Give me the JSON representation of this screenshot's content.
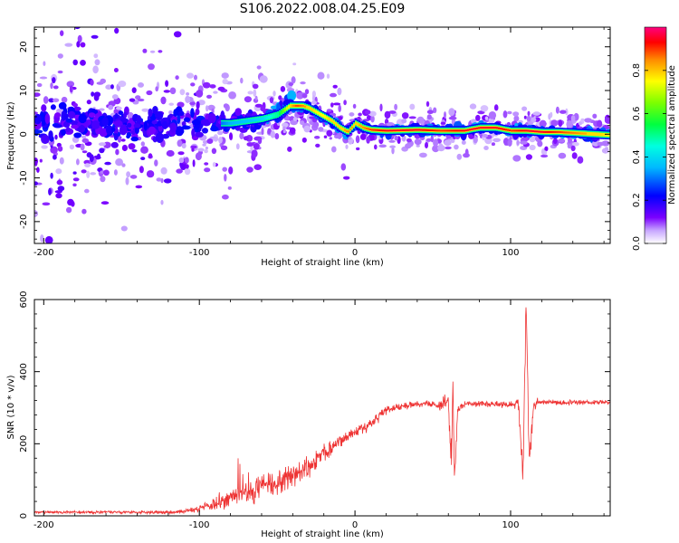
{
  "title": "S106.2022.008.04.25.E09",
  "chart_data": [
    {
      "type": "heatmap",
      "xlabel": "Height of straight line (km)",
      "ylabel": "Frequency (Hz)",
      "xlim": [
        -206,
        164
      ],
      "ylim": [
        -25,
        24.5
      ],
      "xticks": [
        -200,
        -100,
        0,
        100
      ],
      "xtick_labels": [
        "-200",
        "-100",
        "0",
        "100"
      ],
      "yticks": [
        -20,
        -10,
        0,
        10,
        20
      ],
      "ytick_labels": [
        "-20",
        "-10",
        "0",
        "10",
        "20"
      ],
      "colorbar": {
        "label": "Normalized spectral amplitude",
        "range": [
          0,
          1
        ],
        "ticks": [
          0.0,
          0.2,
          0.4,
          0.6,
          0.8
        ],
        "tick_labels": [
          "0.0",
          "0.2",
          "0.4",
          "0.6",
          "0.8"
        ],
        "colormap": "gist_ncar_r"
      },
      "ridge_frequency_track": {
        "x": [
          -206,
          -150,
          -100,
          -80,
          -60,
          -50,
          -42,
          -38,
          -34,
          -30,
          -25,
          -20,
          -15,
          -10,
          -5,
          0,
          5,
          10,
          20,
          40,
          55,
          70,
          80,
          90,
          100,
          110,
          120,
          130,
          164
        ],
        "y": [
          3,
          2,
          2.5,
          2.5,
          3.5,
          4.5,
          6.5,
          6.5,
          6.5,
          6,
          5,
          4,
          3,
          1.5,
          0.5,
          2.5,
          1.5,
          1,
          0.8,
          1,
          0.8,
          0.8,
          1.5,
          1.5,
          0.8,
          0.8,
          0.5,
          0.5,
          -0.2
        ],
        "amplitude": [
          0.15,
          0.15,
          0.2,
          0.35,
          0.4,
          0.5,
          0.8,
          0.9,
          0.85,
          0.8,
          0.75,
          0.75,
          0.8,
          0.8,
          0.85,
          0.8,
          0.85,
          0.9,
          0.95,
          0.95,
          0.9,
          0.95,
          0.95,
          0.95,
          0.9,
          0.95,
          0.95,
          0.9,
          0.75
        ]
      },
      "grid": false
    },
    {
      "type": "line",
      "xlabel": "Height of straight line (km)",
      "ylabel": "SNR (10 * v/v)",
      "xlim": [
        -206,
        164
      ],
      "ylim": [
        0,
        600
      ],
      "xticks": [
        -200,
        -100,
        0,
        100
      ],
      "xtick_labels": [
        "-200",
        "-100",
        "0",
        "100"
      ],
      "yticks": [
        0,
        200,
        400,
        600
      ],
      "ytick_labels": [
        "0",
        "200",
        "400",
        "600"
      ],
      "color": "#ee3333",
      "series": [
        {
          "x": [
            -206,
            -180,
            -150,
            -120,
            -110,
            -100,
            -90,
            -80,
            -70,
            -60,
            -50,
            -40,
            -30,
            -20,
            -10,
            0,
            10,
            15,
            20,
            30,
            40,
            50,
            60,
            62,
            63,
            64,
            66,
            70,
            80,
            90,
            100,
            105,
            108,
            110,
            112,
            115,
            120,
            140,
            164
          ],
          "y": [
            10,
            10,
            10,
            10,
            12,
            20,
            35,
            50,
            65,
            80,
            95,
            110,
            140,
            175,
            205,
            230,
            255,
            275,
            295,
            305,
            310,
            310,
            315,
            150,
            380,
            80,
            300,
            310,
            310,
            310,
            310,
            310,
            120,
            590,
            160,
            310,
            315,
            315,
            315
          ],
          "noise": [
            5,
            6,
            6,
            6,
            8,
            15,
            30,
            40,
            45,
            45,
            45,
            45,
            40,
            35,
            30,
            25,
            22,
            20,
            18,
            15,
            12,
            15,
            40,
            60,
            80,
            60,
            30,
            12,
            12,
            12,
            12,
            25,
            60,
            80,
            60,
            25,
            10,
            10,
            10
          ]
        }
      ],
      "grid": false
    }
  ]
}
